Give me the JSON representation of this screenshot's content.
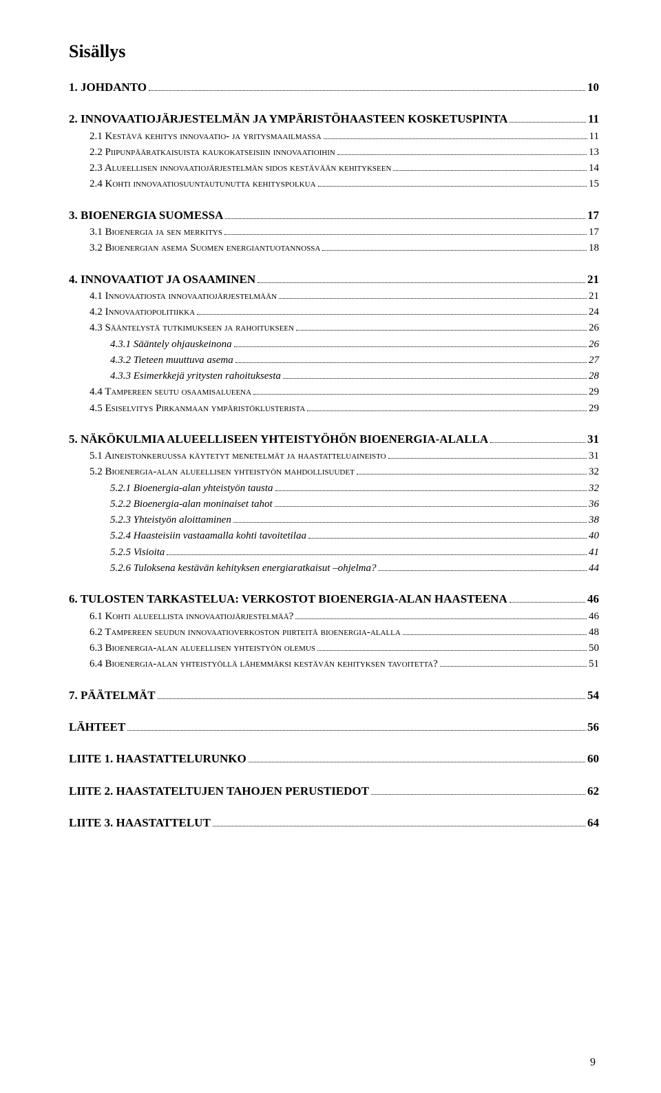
{
  "doc_title": "Sisällys",
  "page_number": "9",
  "colors": {
    "text": "#000000",
    "background": "#ffffff",
    "dots": "#000000"
  },
  "typography": {
    "font_family": "Times New Roman",
    "title_fontsize": 26,
    "l1_fontsize": 17,
    "l2_fontsize": 15,
    "l3_fontsize": 15
  },
  "toc": [
    {
      "level": 1,
      "label": "1. JOHDANTO",
      "page": "10"
    },
    {
      "level": 1,
      "label": "2. INNOVAATIOJÄRJESTELMÄN JA YMPÄRISTÖHAASTEEN KOSKETUSPINTA",
      "page": "11"
    },
    {
      "level": 2,
      "label": "2.1 Kestävä kehitys innovaatio- ja yritysmaailmassa",
      "page": "11"
    },
    {
      "level": 2,
      "label": "2.2 Piipunpääratkaisuista kaukokatseisiin innovaatioihin",
      "page": "13"
    },
    {
      "level": 2,
      "label": "2.3 Alueellisen innovaatiojärjestelmän sidos kestävään kehitykseen",
      "page": "14"
    },
    {
      "level": 2,
      "label": "2.4 Kohti innovaatiosuuntautunutta kehityspolkua",
      "page": "15"
    },
    {
      "level": 1,
      "label": "3. BIOENERGIA SUOMESSA",
      "page": "17"
    },
    {
      "level": 2,
      "label": "3.1 Bioenergia ja sen merkitys",
      "page": "17"
    },
    {
      "level": 2,
      "label": "3.2 Bioenergian asema Suomen energiantuotannossa",
      "page": "18"
    },
    {
      "level": 1,
      "label": "4. INNOVAATIOT JA OSAAMINEN",
      "page": "21"
    },
    {
      "level": 2,
      "label": "4.1 Innovaatiosta innovaatiojärjestelmään",
      "page": "21"
    },
    {
      "level": 2,
      "label": "4.2 Innovaatiopolitiikka",
      "page": "24"
    },
    {
      "level": 2,
      "label": "4.3 Sääntelystä tutkimukseen ja rahoitukseen",
      "page": "26"
    },
    {
      "level": 3,
      "label": "4.3.1 Sääntely ohjauskeinona",
      "page": "26"
    },
    {
      "level": 3,
      "label": "4.3.2 Tieteen muuttuva asema",
      "page": "27"
    },
    {
      "level": 3,
      "label": "4.3.3 Esimerkkejä yritysten rahoituksesta",
      "page": "28"
    },
    {
      "level": 2,
      "label": "4.4 Tampereen seutu osaamisalueena",
      "page": "29"
    },
    {
      "level": 2,
      "label": "4.5 Esiselvitys Pirkanmaan ympäristöklusterista",
      "page": "29"
    },
    {
      "level": 1,
      "label": "5. NÄKÖKULMIA ALUEELLISEEN YHTEISTYÖHÖN BIOENERGIA-ALALLA",
      "page": "31"
    },
    {
      "level": 2,
      "label": "5.1 Aineistonkeruussa käytetyt menetelmät ja haastatteluaineisto",
      "page": "31"
    },
    {
      "level": 2,
      "label": "5.2 Bioenergia-alan alueellisen yhteistyön mahdollisuudet",
      "page": "32"
    },
    {
      "level": 3,
      "label": "5.2.1 Bioenergia-alan yhteistyön tausta",
      "page": "32"
    },
    {
      "level": 3,
      "label": "5.2.2 Bioenergia-alan moninaiset tahot",
      "page": "36"
    },
    {
      "level": 3,
      "label": "5.2.3 Yhteistyön aloittaminen",
      "page": "38"
    },
    {
      "level": 3,
      "label": "5.2.4 Haasteisiin vastaamalla kohti tavoitetilaa",
      "page": "40"
    },
    {
      "level": 3,
      "label": "5.2.5 Visioita",
      "page": "41"
    },
    {
      "level": 3,
      "label": "5.2.6 Tuloksena kestävän kehityksen energiaratkaisut –ohjelma?",
      "page": "44"
    },
    {
      "level": 1,
      "label": "6. TULOSTEN TARKASTELUA: VERKOSTOT BIOENERGIA-ALAN HAASTEENA",
      "page": "46"
    },
    {
      "level": 2,
      "label": "6.1 Kohti alueellista innovaatiojärjestelmää?",
      "page": "46"
    },
    {
      "level": 2,
      "label": "6.2 Tampereen seudun innovaatioverkoston piirteitä bioenergia-alalla",
      "page": "48"
    },
    {
      "level": 2,
      "label": "6.3 Bioenergia-alan alueellisen yhteistyön olemus",
      "page": "50"
    },
    {
      "level": 2,
      "label": "6.4 Bioenergia-alan yhteistyöllä lähemmäksi kestävän kehityksen tavoitetta?",
      "page": "51"
    },
    {
      "level": 1,
      "label": "7. PÄÄTELMÄT",
      "page": "54"
    },
    {
      "level": 1,
      "label": "LÄHTEET",
      "page": "56"
    },
    {
      "level": 1,
      "label": "LIITE 1. HAASTATTELURUNKO",
      "page": "60"
    },
    {
      "level": 1,
      "label": "LIITE 2. HAASTATELTUJEN TAHOJEN PERUSTIEDOT",
      "page": "62"
    },
    {
      "level": 1,
      "label": "LIITE 3. HAASTATTELUT",
      "page": "64"
    }
  ]
}
